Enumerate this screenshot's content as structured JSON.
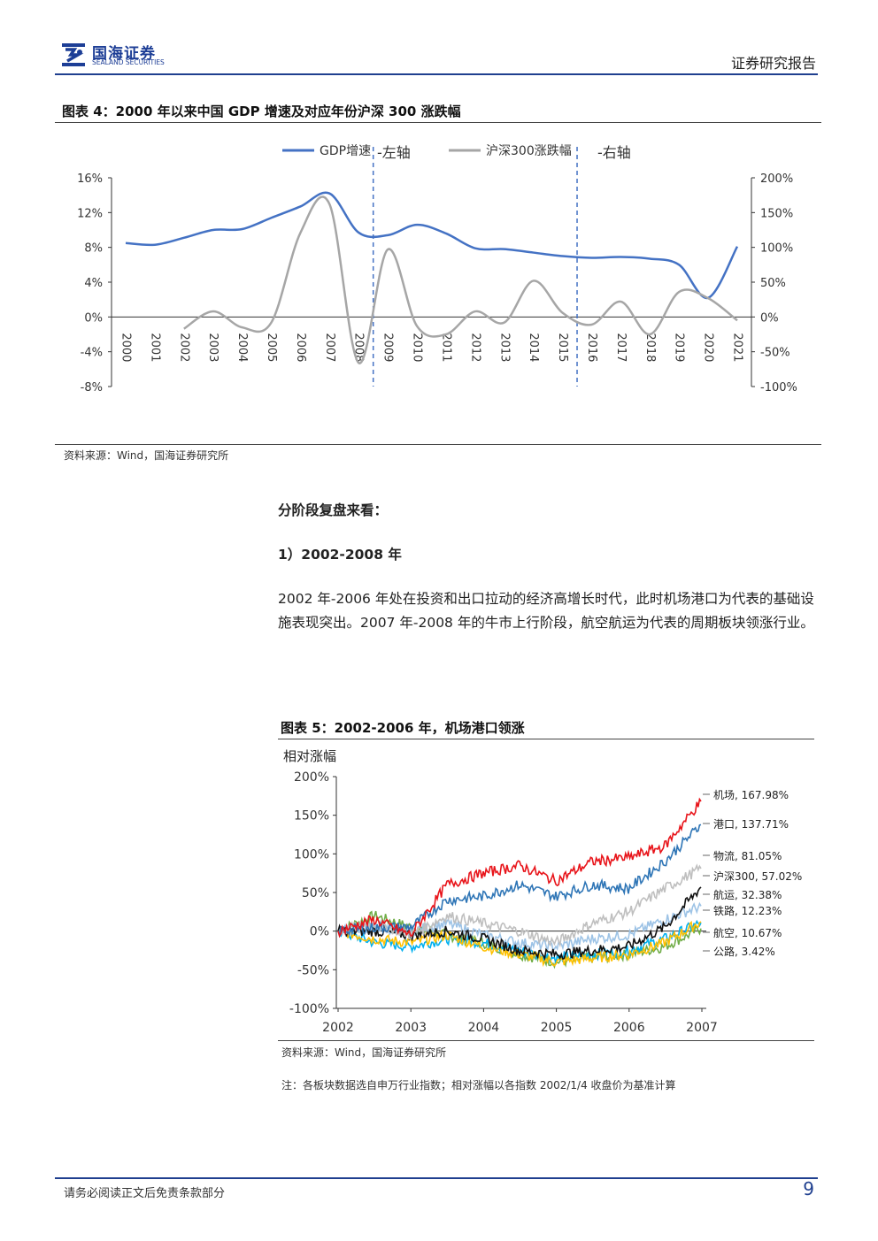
{
  "header": {
    "logo_cn": "国海证券",
    "logo_en": "SEALAND SECURITIES",
    "report_type": "证券研究报告"
  },
  "figure4": {
    "title": "图表 4：2000 年以来中国 GDP 增速及对应年份沪深 300 涨跌幅",
    "source": "资料来源：Wind，国海证券研究所"
  },
  "section": {
    "heading": "分阶段复盘来看：",
    "sub_heading": "1）2002-2008 年",
    "paragraph": "2002 年-2006 年处在投资和出口拉动的经济高增长时代，此时机场港口为代表的基础设施表现突出。2007 年-2008 年的牛市上行阶段，航空航运为代表的周期板块领涨行业。"
  },
  "figure5": {
    "title": "图表 5：2002-2006 年，机场港口领涨",
    "source": "资料来源：Wind，国海证券研究所",
    "note": "注：各板块数据选自申万行业指数；相对涨幅以各指数 2002/1/4 收盘价为基准计算"
  },
  "footer": {
    "disclaimer": "请务必阅读正文后免责条款部分",
    "page_number": "9"
  },
  "chart_data": [
    {
      "type": "line",
      "x": [
        "2000",
        "2001",
        "2002",
        "2003",
        "2004",
        "2005",
        "2006",
        "2007",
        "2008",
        "2009",
        "2010",
        "2011",
        "2012",
        "2013",
        "2014",
        "2015",
        "2016",
        "2017",
        "2018",
        "2019",
        "2020",
        "2021"
      ],
      "series": [
        {
          "name": "GDP增速 -左轴",
          "axis": "left",
          "color": "#4472c4",
          "values": [
            8.5,
            8.3,
            9.1,
            10.0,
            10.1,
            11.4,
            12.7,
            14.2,
            9.7,
            9.4,
            10.6,
            9.6,
            7.9,
            7.8,
            7.4,
            7.0,
            6.8,
            6.9,
            6.7,
            6.0,
            2.2,
            8.1
          ]
        },
        {
          "name": "沪深300涨跌幅 -右轴",
          "axis": "right",
          "color": "#a6a6a6",
          "values": [
            null,
            null,
            -17,
            8,
            -15,
            -8,
            121,
            162,
            -66,
            97,
            -13,
            -25,
            8,
            -8,
            52,
            6,
            -11,
            22,
            -25,
            36,
            27,
            -5
          ]
        }
      ],
      "left_axis": {
        "ticks": [
          "16%",
          "12%",
          "8%",
          "4%",
          "0%",
          "-4%",
          "-8%"
        ],
        "range": [
          -8,
          16
        ]
      },
      "right_axis": {
        "ticks": [
          "200%",
          "150%",
          "100%",
          "50%",
          "0%",
          "-50%",
          "-100%"
        ],
        "range": [
          -100,
          200
        ]
      },
      "dashed_markers_between": [
        [
          "2008",
          "2009"
        ],
        [
          "2015",
          "2016"
        ]
      ],
      "legend_placement": "top"
    },
    {
      "type": "line",
      "ylabel": "相对涨幅",
      "x_ticks": [
        "2002",
        "2003",
        "2004",
        "2005",
        "2006",
        "2007"
      ],
      "y_ticks": [
        "200%",
        "150%",
        "100%",
        "50%",
        "0%",
        "-50%",
        "-100%"
      ],
      "ylim": [
        -100,
        200
      ],
      "series": [
        {
          "name": "机场",
          "label": "机场, 167.98%",
          "final": 167.98,
          "color": "#e8141a"
        },
        {
          "name": "港口",
          "label": "港口, 137.71%",
          "final": 137.71,
          "color": "#2e75b6"
        },
        {
          "name": "物流",
          "label": "物流, 81.05%",
          "final": 81.05,
          "color": "#bfbfbf"
        },
        {
          "name": "沪深300",
          "label": "沪深300, 57.02%",
          "final": 57.02,
          "color": "#111111"
        },
        {
          "name": "航运",
          "label": "航运, 32.38%",
          "final": 32.38,
          "color": "#9dc3e6"
        },
        {
          "name": "铁路",
          "label": "铁路, 12.23%",
          "final": 12.23,
          "color": "#ffc000"
        },
        {
          "name": "航空",
          "label": "航空, 10.67%",
          "final": 10.67,
          "color": "#00b0f0"
        },
        {
          "name": "公路",
          "label": "公路, 3.42%",
          "final": 3.42,
          "color": "#70ad47"
        }
      ]
    }
  ]
}
